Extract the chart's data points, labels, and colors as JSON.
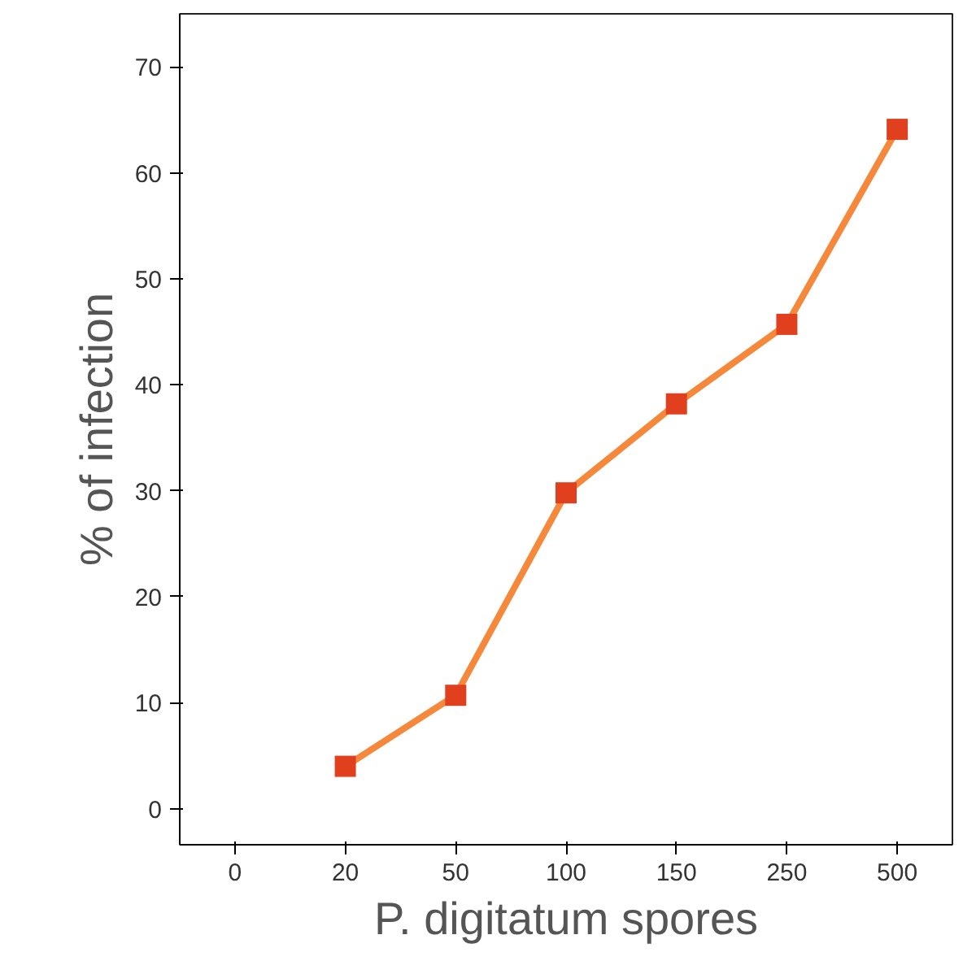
{
  "chart_data": {
    "type": "line",
    "xlabel": "P. digitatum spores",
    "ylabel": "% of infection",
    "categories": [
      "0",
      "20",
      "50",
      "100",
      "150",
      "250",
      "500"
    ],
    "series": [
      {
        "color": "#f5883a",
        "values": [
          null,
          4.0,
          10.7,
          29.8,
          38.2,
          45.7,
          64.1
        ]
      }
    ],
    "ylim": [
      -3.4,
      75
    ],
    "yticks": [
      0,
      10,
      20,
      30,
      40,
      50,
      60,
      70
    ],
    "marker": "square",
    "line_style": "solid",
    "grid": false
  }
}
